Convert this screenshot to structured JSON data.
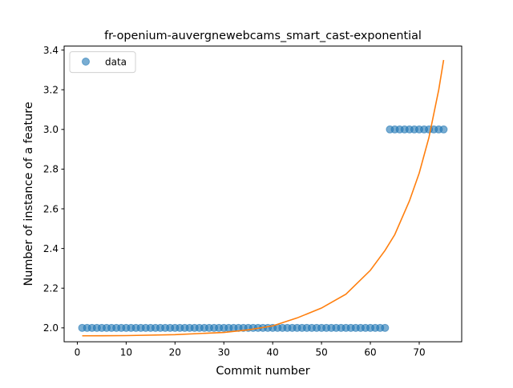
{
  "chart_data": {
    "type": "scatter",
    "title": "fr-openium-auvergnewebcams_smart_cast-exponential",
    "xlabel": "Commit number",
    "ylabel": "Number of instance of a feature",
    "xlim": [
      -2.7,
      78.7
    ],
    "ylim": [
      1.93,
      3.42
    ],
    "xticks": [
      0,
      10,
      20,
      30,
      40,
      50,
      60,
      70
    ],
    "yticks": [
      2.0,
      2.2,
      2.4,
      2.6,
      2.8,
      3.0,
      3.2,
      3.4
    ],
    "grid": false,
    "legend": {
      "position": "top-left",
      "entries": [
        {
          "label": "data",
          "marker": "circle",
          "color": "#1f77b4"
        }
      ]
    },
    "series": [
      {
        "name": "data",
        "kind": "scatter",
        "color": "#1f77b4",
        "x": [
          1,
          2,
          3,
          4,
          5,
          6,
          7,
          8,
          9,
          10,
          11,
          12,
          13,
          14,
          15,
          16,
          17,
          18,
          19,
          20,
          21,
          22,
          23,
          24,
          25,
          26,
          27,
          28,
          29,
          30,
          31,
          32,
          33,
          34,
          35,
          36,
          37,
          38,
          39,
          40,
          41,
          42,
          43,
          44,
          45,
          46,
          47,
          48,
          49,
          50,
          51,
          52,
          53,
          54,
          55,
          56,
          57,
          58,
          59,
          60,
          61,
          62,
          63,
          64,
          65,
          66,
          67,
          68,
          69,
          70,
          71,
          72,
          73,
          74,
          75
        ],
        "y": [
          2,
          2,
          2,
          2,
          2,
          2,
          2,
          2,
          2,
          2,
          2,
          2,
          2,
          2,
          2,
          2,
          2,
          2,
          2,
          2,
          2,
          2,
          2,
          2,
          2,
          2,
          2,
          2,
          2,
          2,
          2,
          2,
          2,
          2,
          2,
          2,
          2,
          2,
          2,
          2,
          2,
          2,
          2,
          2,
          2,
          2,
          2,
          2,
          2,
          2,
          2,
          2,
          2,
          2,
          2,
          2,
          2,
          2,
          2,
          2,
          2,
          2,
          2,
          3,
          3,
          3,
          3,
          3,
          3,
          3,
          3,
          3,
          3,
          3,
          3
        ]
      },
      {
        "kind": "line",
        "color": "#ff7f0e",
        "x": [
          1,
          10,
          20,
          30,
          35,
          40,
          45,
          50,
          55,
          60,
          63,
          65,
          68,
          70,
          72,
          74,
          75
        ],
        "y": [
          1.96,
          1.961,
          1.966,
          1.977,
          1.99,
          2.01,
          2.05,
          2.1,
          2.17,
          2.29,
          2.39,
          2.47,
          2.64,
          2.78,
          2.96,
          3.2,
          3.35
        ]
      }
    ]
  }
}
